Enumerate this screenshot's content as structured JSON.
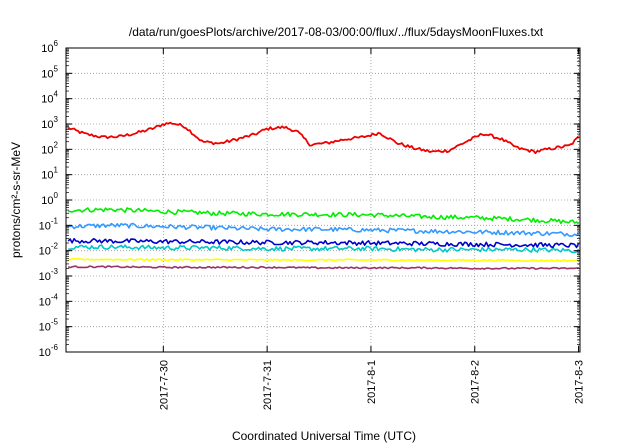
{
  "chart_data": {
    "type": "line",
    "title": "/data/run/goesPlots/archive/2017-08-03/00:00/flux/../flux/5daysMoonFluxes.txt",
    "xlabel": "Coordinated Universal Time (UTC)",
    "ylabel": "protons/cm²-s-sr-MeV",
    "yscale": "log",
    "ylim": [
      1e-06,
      1000000.0
    ],
    "xlim": [
      "2017-07-29 01:30",
      "2017-08-03 00:20"
    ],
    "grid": true,
    "legend": "none",
    "ytick_labels": [
      {
        "base": "10",
        "exp": "-6"
      },
      {
        "base": "10",
        "exp": "-5"
      },
      {
        "base": "10",
        "exp": "-4"
      },
      {
        "base": "10",
        "exp": "-3"
      },
      {
        "base": "10",
        "exp": "-2"
      },
      {
        "base": "10",
        "exp": "-1"
      },
      {
        "base": "10",
        "exp": "0"
      },
      {
        "base": "10",
        "exp": "1"
      },
      {
        "base": "10",
        "exp": "2"
      },
      {
        "base": "10",
        "exp": "3"
      },
      {
        "base": "10",
        "exp": "4"
      },
      {
        "base": "10",
        "exp": "5"
      },
      {
        "base": "10",
        "exp": "6"
      }
    ],
    "xticks": [
      {
        "label": "2017-7-30",
        "date": "2017-07-30"
      },
      {
        "label": "2017-7-31",
        "date": "2017-07-31"
      },
      {
        "label": "2017-8-1",
        "date": "2017-08-01"
      },
      {
        "label": "2017-8-2",
        "date": "2017-08-02"
      },
      {
        "label": "2017-8-3",
        "date": "2017-08-03"
      }
    ],
    "series": [
      {
        "color": "#ee0000",
        "x": [
          "2017-07-29 02:00",
          "2017-07-29 06:00",
          "2017-07-29 10:00",
          "2017-07-29 14:00",
          "2017-07-29 18:00",
          "2017-07-29 22:00",
          "2017-07-30 00:00",
          "2017-07-30 02:00",
          "2017-07-30 05:00",
          "2017-07-30 09:00",
          "2017-07-30 13:00",
          "2017-07-30 17:00",
          "2017-07-30 21:00",
          "2017-07-31 00:00",
          "2017-07-31 04:00",
          "2017-07-31 07:00",
          "2017-07-31 10:00",
          "2017-07-31 14:00",
          "2017-07-31 18:00",
          "2017-07-31 22:00",
          "2017-08-01 02:00",
          "2017-08-01 06:00",
          "2017-08-01 10:00",
          "2017-08-01 14:00",
          "2017-08-01 18:00",
          "2017-08-01 22:00",
          "2017-08-02 02:00",
          "2017-08-02 06:00",
          "2017-08-02 10:00",
          "2017-08-02 14:00",
          "2017-08-02 18:00",
          "2017-08-02 22:00",
          "2017-08-03 00:00"
        ],
        "y": [
          700,
          400,
          300,
          320,
          450,
          700,
          1000,
          1100,
          800,
          200,
          170,
          250,
          380,
          650,
          750,
          500,
          150,
          180,
          250,
          300,
          450,
          180,
          110,
          80,
          90,
          200,
          420,
          260,
          110,
          80,
          110,
          140,
          300
        ]
      },
      {
        "color": "#00ee00",
        "x": [
          "2017-07-29 02:00",
          "2017-07-29 12:00",
          "2017-07-30 00:00",
          "2017-07-30 12:00",
          "2017-07-31 00:00",
          "2017-07-31 12:00",
          "2017-08-01 00:00",
          "2017-08-01 12:00",
          "2017-08-02 00:00",
          "2017-08-02 12:00",
          "2017-08-03 00:00"
        ],
        "y": [
          0.4,
          0.42,
          0.35,
          0.3,
          0.28,
          0.27,
          0.26,
          0.22,
          0.2,
          0.17,
          0.13
        ]
      },
      {
        "color": "#3399ff",
        "x": [
          "2017-07-29 02:00",
          "2017-07-29 12:00",
          "2017-07-30 00:00",
          "2017-07-30 12:00",
          "2017-07-31 00:00",
          "2017-07-31 12:00",
          "2017-08-01 00:00",
          "2017-08-01 12:00",
          "2017-08-02 00:00",
          "2017-08-02 12:00",
          "2017-08-03 00:00"
        ],
        "y": [
          0.09,
          0.1,
          0.09,
          0.08,
          0.07,
          0.07,
          0.065,
          0.06,
          0.055,
          0.05,
          0.045
        ]
      },
      {
        "color": "#00c8c8",
        "x": [
          "2017-07-29 02:00",
          "2017-07-29 12:00",
          "2017-07-30 00:00",
          "2017-07-30 12:00",
          "2017-07-31 00:00",
          "2017-07-31 12:00",
          "2017-08-01 00:00",
          "2017-08-01 12:00",
          "2017-08-02 00:00",
          "2017-08-02 12:00",
          "2017-08-03 00:00"
        ],
        "y": [
          0.014,
          0.014,
          0.013,
          0.013,
          0.012,
          0.012,
          0.012,
          0.011,
          0.011,
          0.011,
          0.01
        ]
      },
      {
        "color": "#0000cc",
        "x": [
          "2017-07-29 02:00",
          "2017-07-29 12:00",
          "2017-07-30 00:00",
          "2017-07-30 12:00",
          "2017-07-31 00:00",
          "2017-07-31 12:00",
          "2017-08-01 00:00",
          "2017-08-01 12:00",
          "2017-08-02 00:00",
          "2017-08-02 12:00",
          "2017-08-03 00:00"
        ],
        "y": [
          0.025,
          0.024,
          0.023,
          0.022,
          0.021,
          0.021,
          0.02,
          0.019,
          0.018,
          0.017,
          0.016
        ]
      },
      {
        "color": "#ffff00",
        "x": [
          "2017-07-29 02:00",
          "2017-07-29 12:00",
          "2017-07-30 00:00",
          "2017-07-30 12:00",
          "2017-07-31 00:00",
          "2017-07-31 12:00",
          "2017-08-01 00:00",
          "2017-08-01 12:00",
          "2017-08-02 00:00",
          "2017-08-02 12:00",
          "2017-08-03 00:00"
        ],
        "y": [
          0.0045,
          0.0045,
          0.0044,
          0.0044,
          0.0043,
          0.0043,
          0.0043,
          0.0042,
          0.0042,
          0.0041,
          0.0041
        ]
      },
      {
        "color": "#993366",
        "x": [
          "2017-07-29 02:00",
          "2017-07-29 12:00",
          "2017-07-30 00:00",
          "2017-07-30 12:00",
          "2017-07-31 00:00",
          "2017-07-31 12:00",
          "2017-08-01 00:00",
          "2017-08-01 12:00",
          "2017-08-02 00:00",
          "2017-08-02 12:00",
          "2017-08-03 00:00"
        ],
        "y": [
          0.0023,
          0.0023,
          0.0022,
          0.0022,
          0.0022,
          0.0021,
          0.0021,
          0.0021,
          0.002,
          0.002,
          0.002
        ]
      }
    ]
  }
}
